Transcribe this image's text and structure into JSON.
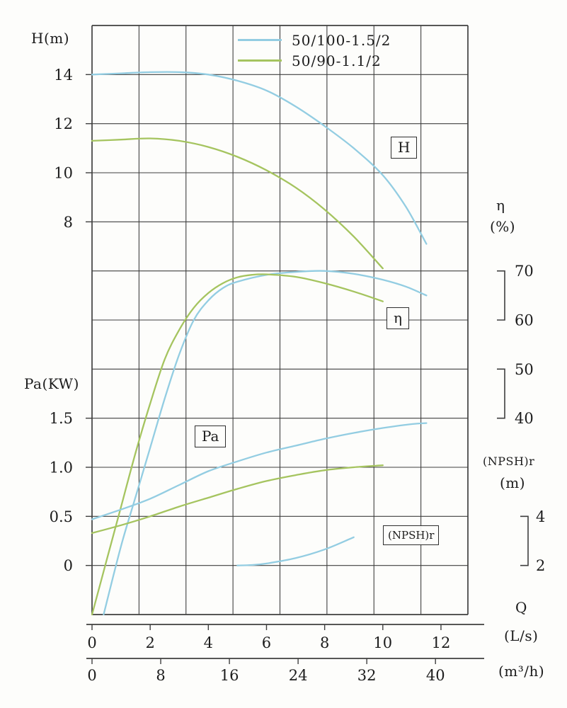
{
  "chart_data": {
    "type": "line",
    "x_axis_primary": {
      "name": "Q",
      "unit": "(L/s)",
      "ticks": [
        "0",
        "2",
        "4",
        "6",
        "8",
        "10",
        "12"
      ]
    },
    "x_axis_secondary": {
      "unit": "(m³/h)",
      "ticks": [
        "0",
        "8",
        "16",
        "24",
        "32",
        "40"
      ]
    },
    "y_axes": {
      "H": {
        "title": "H(m)",
        "ticks": [
          "14",
          "12",
          "10",
          "8"
        ]
      },
      "eta": {
        "title": "η",
        "unit": "(%)",
        "ticks": [
          "70",
          "60",
          "50",
          "40"
        ]
      },
      "Pa": {
        "title": "Pa(KW)",
        "ticks": [
          "1.5",
          "1.0",
          "0.5",
          "0"
        ]
      },
      "NPSH": {
        "title": "(NPSH)r",
        "unit": "(m)",
        "ticks": [
          "4",
          "2"
        ]
      }
    },
    "legend": [
      {
        "label": "50/100-1.5/2",
        "color": "#93cde2"
      },
      {
        "label": "50/90-1.1/2",
        "color": "#a5c45f"
      }
    ],
    "curve_labels": {
      "H": "H",
      "eta": "η",
      "Pa": "Pa",
      "NPSH": "(NPSH)r"
    },
    "series": [
      {
        "key": "H-50-100",
        "axis": "H",
        "model": 0,
        "points": [
          [
            0,
            14.0
          ],
          [
            1,
            14.05
          ],
          [
            2,
            14.1
          ],
          [
            3,
            14.1
          ],
          [
            4,
            14.0
          ],
          [
            5,
            13.75
          ],
          [
            6,
            13.35
          ],
          [
            7,
            12.7
          ],
          [
            8,
            11.9
          ],
          [
            9,
            11.0
          ],
          [
            10,
            9.9
          ],
          [
            10.8,
            8.6
          ],
          [
            11.5,
            7.1
          ]
        ]
      },
      {
        "key": "H-50-90",
        "axis": "H",
        "model": 1,
        "points": [
          [
            0,
            11.3
          ],
          [
            1,
            11.35
          ],
          [
            2,
            11.4
          ],
          [
            3,
            11.3
          ],
          [
            4,
            11.05
          ],
          [
            5,
            10.65
          ],
          [
            6,
            10.1
          ],
          [
            7,
            9.4
          ],
          [
            8,
            8.5
          ],
          [
            9,
            7.4
          ],
          [
            10,
            6.1
          ]
        ]
      },
      {
        "key": "eta-50-100",
        "axis": "eta",
        "model": 0,
        "points": [
          [
            0.4,
            0
          ],
          [
            1,
            14
          ],
          [
            1.5,
            24
          ],
          [
            2,
            34
          ],
          [
            2.5,
            44
          ],
          [
            3,
            53
          ],
          [
            3.5,
            60
          ],
          [
            4,
            64
          ],
          [
            4.5,
            66.5
          ],
          [
            5,
            67.8
          ],
          [
            6,
            69.2
          ],
          [
            7,
            69.8
          ],
          [
            8,
            70
          ],
          [
            9,
            69.4
          ],
          [
            10,
            68.2
          ],
          [
            10.8,
            66.8
          ],
          [
            11.5,
            65
          ]
        ]
      },
      {
        "key": "eta-50-90",
        "axis": "eta",
        "model": 1,
        "points": [
          [
            0,
            0
          ],
          [
            0.5,
            11
          ],
          [
            1,
            22
          ],
          [
            1.5,
            33
          ],
          [
            2,
            43
          ],
          [
            2.5,
            52
          ],
          [
            3,
            58
          ],
          [
            3.5,
            62.5
          ],
          [
            4,
            65.5
          ],
          [
            4.5,
            67.5
          ],
          [
            5,
            68.7
          ],
          [
            5.5,
            69.2
          ],
          [
            6,
            69.3
          ],
          [
            7,
            68.8
          ],
          [
            8,
            67.5
          ],
          [
            9,
            65.8
          ],
          [
            10,
            63.8
          ]
        ]
      },
      {
        "key": "Pa-50-100",
        "axis": "Pa",
        "model": 0,
        "points": [
          [
            0,
            0.47
          ],
          [
            1,
            0.57
          ],
          [
            2,
            0.68
          ],
          [
            3,
            0.82
          ],
          [
            4,
            0.96
          ],
          [
            5,
            1.06
          ],
          [
            6,
            1.15
          ],
          [
            7,
            1.22
          ],
          [
            8,
            1.29
          ],
          [
            9,
            1.35
          ],
          [
            10,
            1.4
          ],
          [
            11,
            1.44
          ],
          [
            11.5,
            1.45
          ]
        ]
      },
      {
        "key": "Pa-50-90",
        "axis": "Pa",
        "model": 1,
        "points": [
          [
            0,
            0.33
          ],
          [
            1,
            0.41
          ],
          [
            2,
            0.5
          ],
          [
            3,
            0.6
          ],
          [
            4,
            0.69
          ],
          [
            5,
            0.78
          ],
          [
            6,
            0.86
          ],
          [
            7,
            0.92
          ],
          [
            8,
            0.97
          ],
          [
            9,
            1.0
          ],
          [
            10,
            1.02
          ]
        ]
      },
      {
        "key": "NPSH-50-100",
        "axis": "NPSH",
        "model": 0,
        "points": [
          [
            5,
            2.0
          ],
          [
            5.5,
            2.02
          ],
          [
            6,
            2.08
          ],
          [
            7,
            2.3
          ],
          [
            8,
            2.65
          ],
          [
            9,
            3.15
          ]
        ]
      }
    ]
  }
}
